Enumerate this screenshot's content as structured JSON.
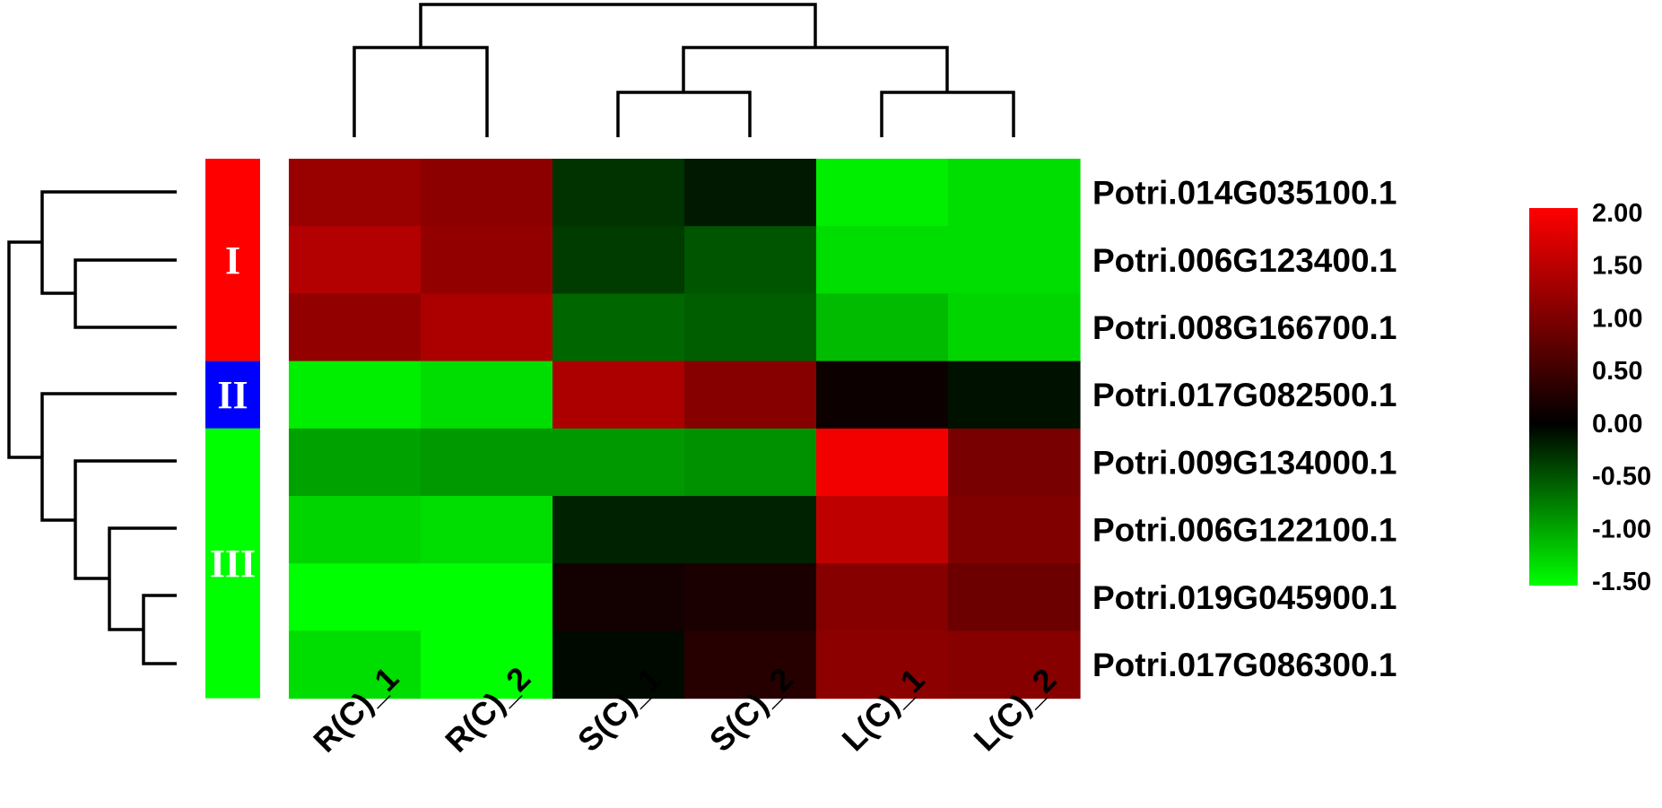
{
  "chart_data": {
    "type": "heatmap",
    "columns": [
      "R(C)_1",
      "R(C)_2",
      "S(C)_1",
      "S(C)_2",
      "L(C)_1",
      "L(C)_2"
    ],
    "rows": [
      "Potri.014G035100.1",
      "Potri.006G123400.1",
      "Potri.008G166700.1",
      "Potri.017G082500.1",
      "Potri.009G134000.1",
      "Potri.006G122100.1",
      "Potri.019G045900.1",
      "Potri.017G086300.1"
    ],
    "values": [
      [
        1.2,
        1.1,
        -0.3,
        -0.15,
        -1.4,
        -1.3
      ],
      [
        1.4,
        1.15,
        -0.35,
        -0.5,
        -1.3,
        -1.3
      ],
      [
        1.15,
        1.35,
        -0.6,
        -0.55,
        -1.1,
        -1.25
      ],
      [
        -1.4,
        -1.3,
        1.35,
        1.05,
        0.1,
        -0.1
      ],
      [
        -0.95,
        -0.9,
        -0.9,
        -0.85,
        1.9,
        0.95
      ],
      [
        -1.25,
        -1.3,
        -0.2,
        -0.2,
        1.5,
        1.0
      ],
      [
        -1.5,
        -1.5,
        0.15,
        0.2,
        1.05,
        0.85
      ],
      [
        -1.3,
        -1.5,
        -0.05,
        0.3,
        1.1,
        1.05
      ]
    ],
    "color_scale": {
      "min": -1.5,
      "mid": 0.0,
      "max": 2.0,
      "min_color": "#00ff00",
      "mid_color": "#000000",
      "max_color": "#ff0000",
      "ticks": [
        "2.00",
        "1.50",
        "1.00",
        "0.50",
        "0.00",
        "-0.50",
        "-1.00",
        "-1.50"
      ]
    },
    "row_clusters": [
      {
        "label": "I",
        "rows": [
          0,
          1,
          2
        ],
        "color": "#ff0000"
      },
      {
        "label": "II",
        "rows": [
          3
        ],
        "color": "#0000ff"
      },
      {
        "label": "III",
        "rows": [
          4,
          5,
          6,
          7
        ],
        "color": "#00ff00"
      }
    ],
    "row_dendrogram": "((0,(1,2)),(3,(4,(5,(6,7)))))",
    "column_dendrogram": "((0,1),((2,3),(4,5)))",
    "title": "",
    "xlabel": "",
    "ylabel": ""
  }
}
